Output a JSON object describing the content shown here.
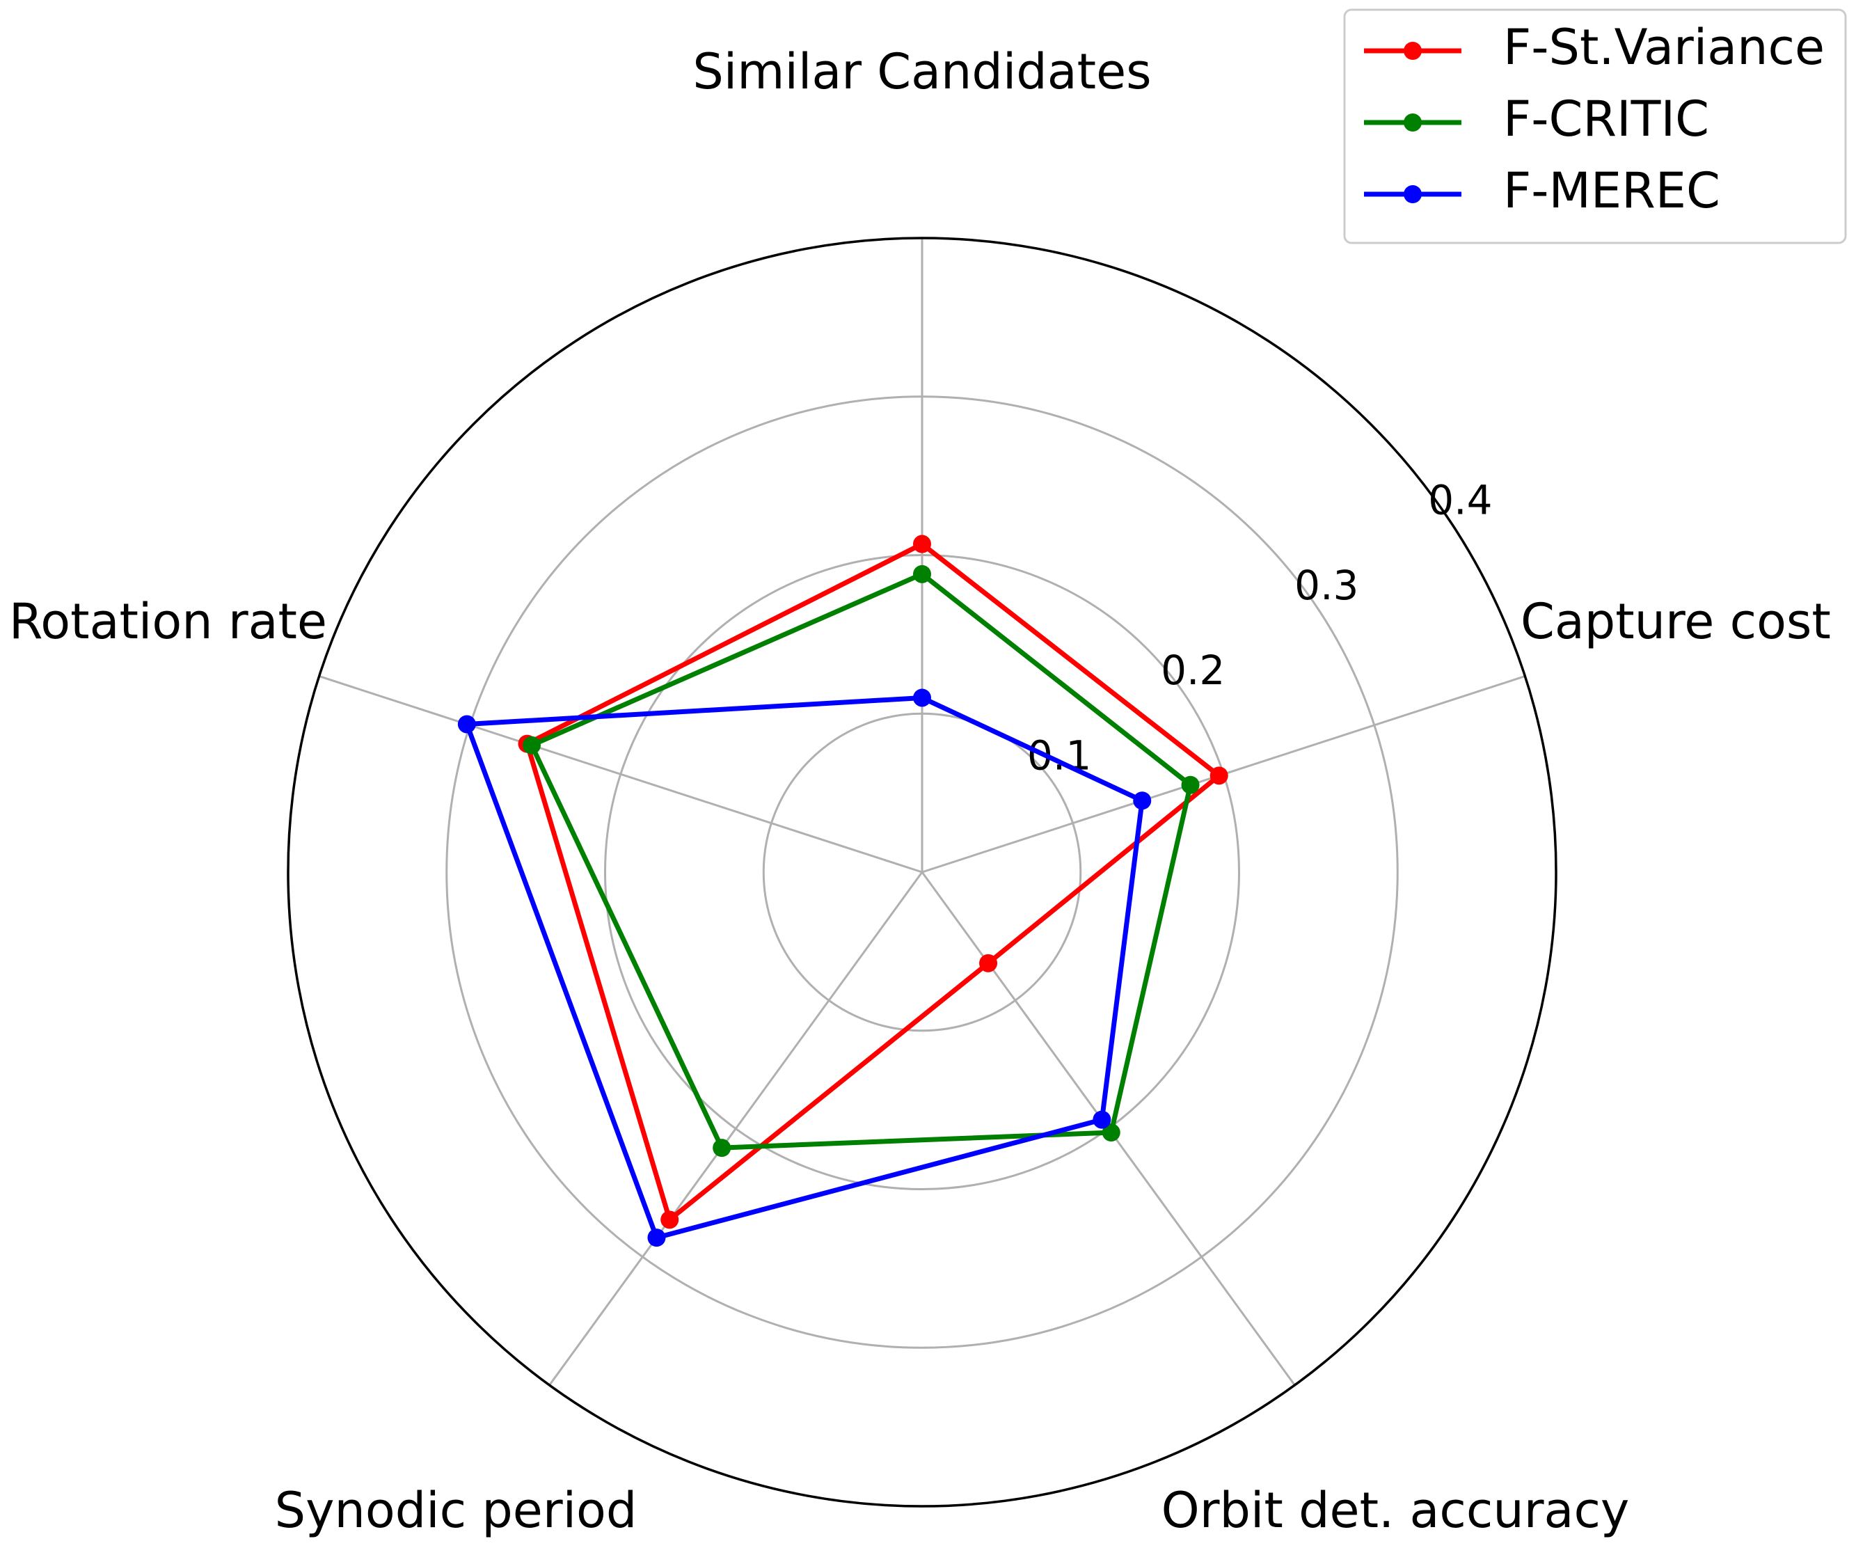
{
  "chart_data": {
    "type": "radar",
    "title": "",
    "axes": [
      "Similar Candidates",
      "Capture cost",
      "Orbit det. accuracy",
      "Synodic period",
      "Rotation rate"
    ],
    "rlim": [
      0,
      0.4
    ],
    "rticks": [
      0.1,
      0.2,
      0.3,
      0.4
    ],
    "rtick_labels": [
      "0.1",
      "0.2",
      "0.3",
      "0.4"
    ],
    "grid": true,
    "legend_position": "top-right",
    "series": [
      {
        "name": "F-St.Variance",
        "color": "#ff0000",
        "values": [
          0.207,
          0.197,
          0.071,
          0.271,
          0.262
        ]
      },
      {
        "name": "F-CRITIC",
        "color": "#008000",
        "values": [
          0.188,
          0.178,
          0.203,
          0.215,
          0.259
        ]
      },
      {
        "name": "F-MEREC",
        "color": "#0000ff",
        "values": [
          0.11,
          0.146,
          0.193,
          0.285,
          0.302
        ]
      }
    ]
  }
}
